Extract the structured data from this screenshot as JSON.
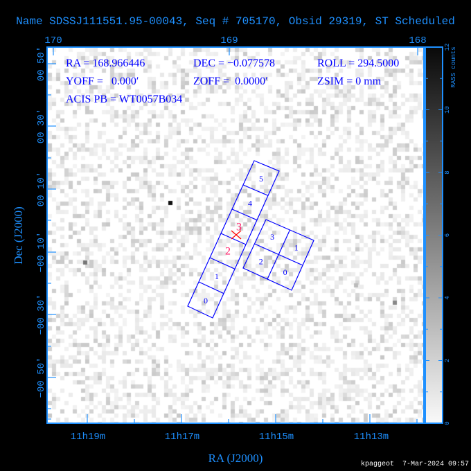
{
  "title": "Name SDSSJ111551.95-00043, Seq # 705170, Obsid 29319, ST Scheduled",
  "info": {
    "ra": "RA = 168.966446",
    "dec": "DEC = −0.077578",
    "roll": "ROLL = 294.5000",
    "yoff": "YOFF =   0.000′",
    "zoff": "ZOFF =  0.0000′",
    "zsim": "ZSIM = 0 mm",
    "acis_pb": "ACIS PB = WT0057B034"
  },
  "top_axis": {
    "ticks": [
      "170",
      "169",
      "168"
    ]
  },
  "bottom_axis": {
    "ticks": [
      "11h19m",
      "11h17m",
      "11h15m",
      "11h13m"
    ],
    "label": "RA (J2000)"
  },
  "left_axis": {
    "ticks": [
      "00 50′",
      "00 30′",
      "00 10′",
      "−00 10′",
      "−00 30′",
      "−00 50′"
    ],
    "label": "Dec (J2000)"
  },
  "colorbar": {
    "label": "RASS counts",
    "ticks": [
      "0",
      "2",
      "4",
      "6",
      "8",
      "10",
      "12"
    ],
    "min": 0,
    "max": 12
  },
  "acis_s_chips": [
    "0",
    "1",
    "2",
    "3",
    "4",
    "5"
  ],
  "acis_i_chips": [
    "3",
    "1",
    "2",
    "0"
  ],
  "footer": "kpaggeot  7-Mar-2024 09:57",
  "colors": {
    "axis": "#1e90ff",
    "chips": "#0000ff",
    "highlight": "#ff1a66",
    "aimpoint": "#ff0000",
    "background": "#000000"
  }
}
